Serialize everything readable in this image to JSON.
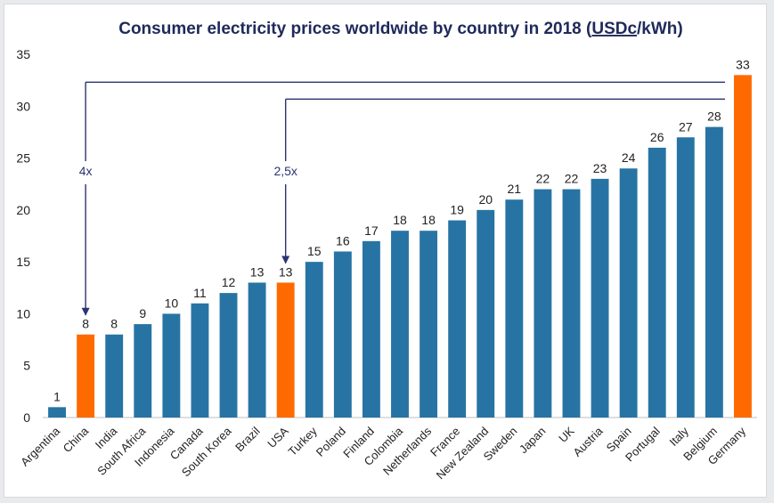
{
  "chart_data": {
    "type": "bar",
    "title_main": "Consumer electricity prices worldwide by country in 2018 (",
    "title_unit": "USDc",
    "title_tail": "/kWh)",
    "categories": [
      "Argentina",
      "China",
      "India",
      "South Africa",
      "Indonesia",
      "Canada",
      "South Korea",
      "Brazil",
      "USA",
      "Turkey",
      "Poland",
      "Finland",
      "Colombia",
      "Netherlands",
      "France",
      "New Zealand",
      "Sweden",
      "Japan",
      "UK",
      "Austria",
      "Spain",
      "Portugal",
      "Italy",
      "Belgium",
      "Germany"
    ],
    "values": [
      1,
      8,
      8,
      9,
      10,
      11,
      12,
      13,
      13,
      15,
      16,
      17,
      18,
      18,
      19,
      20,
      21,
      22,
      22,
      23,
      24,
      26,
      27,
      28,
      33
    ],
    "highlight": [
      "China",
      "USA",
      "Germany"
    ],
    "ylim": [
      0,
      35
    ],
    "yticks": [
      0,
      5,
      10,
      15,
      20,
      25,
      30,
      35
    ],
    "colors": {
      "bar": "#2774a4",
      "highlight": "#ff6a00",
      "annotation": "#2a3470",
      "title": "#1f2a5a"
    },
    "annotations": [
      {
        "label": "4x",
        "from": "Germany",
        "to": "China"
      },
      {
        "label": "2,5x",
        "from": "Germany",
        "to": "USA"
      }
    ],
    "grid": false,
    "legend": "none"
  }
}
